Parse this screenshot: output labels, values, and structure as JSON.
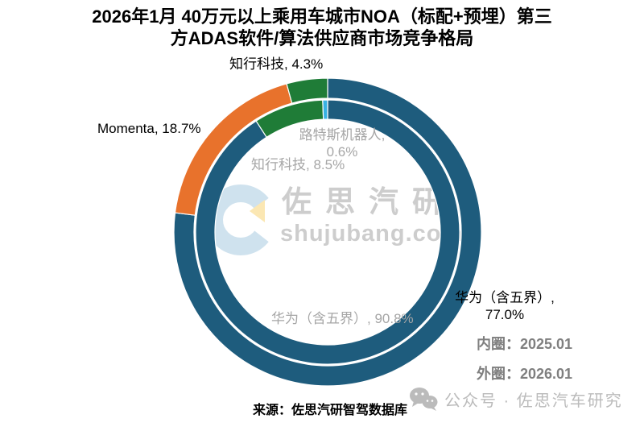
{
  "title": {
    "line1": "2026年1月 40万元以上乘用车城市NOA（标配+预埋）第三",
    "line2": "方ADAS软件/算法供应商市场竞争格局"
  },
  "chart_data": {
    "type": "donut",
    "title": "2026年1月 40万元以上乘用车城市NOA（标配+预埋）第三方ADAS软件/算法供应商市场竞争格局",
    "legend_position": "right",
    "rings": [
      {
        "name": "内圈",
        "period": "2025.01",
        "position": "inner",
        "segments": [
          {
            "label": "华为（含五界）",
            "value": 90.8,
            "color": "#1E5C7D"
          },
          {
            "label": "知行科技",
            "value": 8.5,
            "color": "#1F7C37"
          },
          {
            "label": "路特斯机器人",
            "value": 0.6,
            "color": "#38B2E3"
          }
        ]
      },
      {
        "name": "外圈",
        "period": "2026.01",
        "position": "outer",
        "segments": [
          {
            "label": "华为（含五界）",
            "value": 77.0,
            "color": "#1E5C7D"
          },
          {
            "label": "Momenta",
            "value": 18.7,
            "color": "#E8722C"
          },
          {
            "label": "知行科技",
            "value": 4.3,
            "color": "#1F7C37"
          }
        ]
      }
    ]
  },
  "labels": {
    "zhixing_outer": "知行科技, 4.3%",
    "momenta_outer": "Momenta, 18.7%",
    "lotus_inner_line1": "路特斯机器人,",
    "lotus_inner_line2": "0.6%",
    "zhixing_inner": "知行科技, 8.5%",
    "huawei_inner": "华为（含五界）, 90.8%",
    "huawei_outer_line1": "华为（含五界）,",
    "huawei_outer_line2": "77.0%"
  },
  "legend": {
    "inner_ring": "内圈：2025.01",
    "outer_ring": "外圈：2026.01"
  },
  "source": "来源：佐思汽研智驾数据库",
  "wechat_text": "公众号 · 佐思汽车研究",
  "watermark": {
    "brand": "佐思汽研",
    "domain": "shujubang.com"
  },
  "colors": {
    "huawei_blue": "#1E5C7D",
    "momenta_orange": "#E8722C",
    "zhixing_green": "#1F7C37",
    "lotus_cyan": "#38B2E3",
    "inner_label_gray": "#A6A6A6",
    "legend_gray": "#7F7F7F",
    "watermark_gray": "#CDCDCD",
    "wechat_gray": "#BBBBBB"
  }
}
